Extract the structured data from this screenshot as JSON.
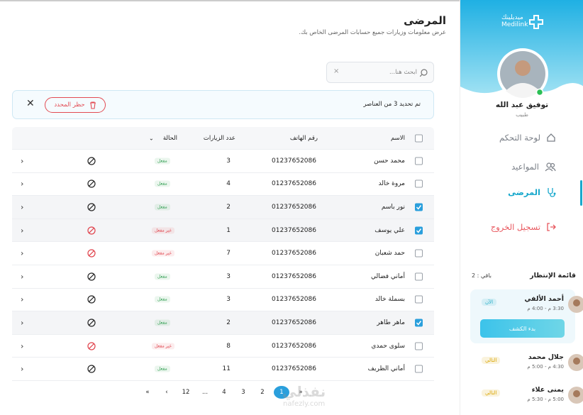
{
  "sidebar": {
    "logo_ar": "ميديلينك",
    "logo_en": "Medilink",
    "user_name": "توفيق عبد الله",
    "user_role": "طبيب",
    "nav": [
      {
        "label": "لوحة التحكم",
        "color": "#7a7f87"
      },
      {
        "label": "المواعيد",
        "color": "#7a7f87"
      },
      {
        "label": "المرضى",
        "color": "#18a8cc",
        "active": true
      },
      {
        "label": "تسجيل الخروج",
        "color": "#e8575e"
      }
    ],
    "waiting": {
      "title": "قائمة الإنتظار",
      "remaining": "باقي : 2",
      "items": [
        {
          "name": "أحمد الألفي",
          "time": "3:30 م - 4:00 م",
          "badge": "الآن",
          "badge_color": "#2bb0c9",
          "button": "بدء الكشف",
          "current": true
        },
        {
          "name": "جلال محمد",
          "time": "4:30 م - 5:00 م",
          "badge": "التالي",
          "badge_color": "#d9a400"
        },
        {
          "name": "يمنى علاء",
          "time": "5:00 م - 5:30 م",
          "badge": "التالي",
          "badge_color": "#d9a400"
        }
      ]
    }
  },
  "header": {
    "title": "المرضى",
    "subtitle": "عرض معلومات وزيارات جميع حسابات المرضى الخاص بك."
  },
  "search": {
    "placeholder": "ابحث هنا..."
  },
  "selection": {
    "text": "تم تحديد 3 من العناصر",
    "button": "حظر المحدد"
  },
  "table": {
    "headers": [
      "الاسم",
      "رقم الهاتف",
      "عدد الزيارات",
      "الحالة"
    ],
    "rows": [
      {
        "name": "محمد حسن",
        "phone": "01237652086",
        "visits": "3",
        "status": "مفعل",
        "status_color": "#2e9d4f",
        "checked": false
      },
      {
        "name": "مروة خالد",
        "phone": "01237652086",
        "visits": "4",
        "status": "مفعل",
        "status_color": "#2e9d4f",
        "checked": false
      },
      {
        "name": "نور باسم",
        "phone": "01237652086",
        "visits": "2",
        "status": "مفعل",
        "status_color": "#2e9d4f",
        "checked": true
      },
      {
        "name": "علي يوسف",
        "phone": "01237652086",
        "visits": "1",
        "status": "غير مفعل",
        "status_color": "#e0414a",
        "checked": true
      },
      {
        "name": "حمد شعبان",
        "phone": "01237652086",
        "visits": "7",
        "status": "غير مفعل",
        "status_color": "#e0414a",
        "checked": false
      },
      {
        "name": "أماني فضالي",
        "phone": "01237652086",
        "visits": "3",
        "status": "مفعل",
        "status_color": "#2e9d4f",
        "checked": false
      },
      {
        "name": "بسملة خالد",
        "phone": "01237652086",
        "visits": "3",
        "status": "مفعل",
        "status_color": "#2e9d4f",
        "checked": false
      },
      {
        "name": "ماهر طاهر",
        "phone": "01237652086",
        "visits": "2",
        "status": "مفعل",
        "status_color": "#2e9d4f",
        "checked": true
      },
      {
        "name": "سلوى حمدي",
        "phone": "01237652086",
        "visits": "8",
        "status": "غير مفعل",
        "status_color": "#e0414a",
        "checked": false
      },
      {
        "name": "أماني الظريف",
        "phone": "01237652086",
        "visits": "11",
        "status": "مفعل",
        "status_color": "#2e9d4f",
        "checked": false
      }
    ]
  },
  "pagination": {
    "items": [
      "«",
      "1",
      "2",
      "3",
      "4",
      "...",
      "12",
      "›",
      "»"
    ],
    "active": 1
  },
  "watermark": {
    "ar": "نفذلي",
    "en": "nafezly.com"
  }
}
